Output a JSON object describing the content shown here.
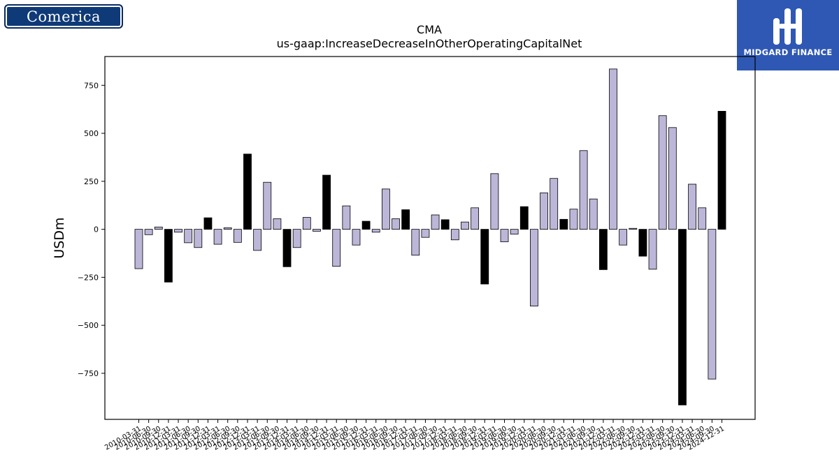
{
  "branding": {
    "left_logo_text": "Comerica",
    "right_logo_text": "MIDGARD FINANCE"
  },
  "colors": {
    "bar_primary": "#bcb6d8",
    "bar_highlight": "#000000",
    "outline": "#000000"
  },
  "chart_data": {
    "type": "bar",
    "title": "CMA",
    "subtitle": "us-gaap:IncreaseDecreaseInOtherOperatingCapitalNet",
    "xlabel": "",
    "ylabel": "USDm",
    "ylim": [
      -990,
      900
    ],
    "yticks": [
      -750,
      -500,
      -250,
      0,
      250,
      500,
      750
    ],
    "ytick_labels": [
      "−750",
      "−500",
      "−250",
      "0",
      "250",
      "500",
      "750"
    ],
    "grid": false,
    "categories": [
      "2010-03-31",
      "2010-06-30",
      "2010-09-30",
      "2010-12-31",
      "2011-03-31",
      "2011-06-30",
      "2011-09-30",
      "2011-12-31",
      "2012-03-31",
      "2012-06-30",
      "2012-09-30",
      "2012-12-31",
      "2013-03-31",
      "2013-06-30",
      "2013-09-30",
      "2013-12-31",
      "2014-03-31",
      "2014-06-30",
      "2014-09-30",
      "2014-12-31",
      "2015-03-31",
      "2015-06-30",
      "2015-09-30",
      "2015-12-31",
      "2016-03-31",
      "2016-06-30",
      "2016-09-30",
      "2016-12-31",
      "2017-03-31",
      "2017-06-30",
      "2017-09-30",
      "2017-12-31",
      "2018-03-31",
      "2018-06-30",
      "2018-09-30",
      "2018-12-31",
      "2019-03-31",
      "2019-06-30",
      "2019-09-30",
      "2019-12-31",
      "2020-03-31",
      "2020-06-30",
      "2020-09-30",
      "2020-12-31",
      "2021-03-31",
      "2021-06-30",
      "2021-09-30",
      "2021-12-31",
      "2022-03-31",
      "2022-06-30",
      "2022-09-30",
      "2022-12-31",
      "2023-03-31",
      "2023-06-30",
      "2023-09-30",
      "2023-12-31",
      "2024-03-31",
      "2024-06-30",
      "2024-09-30",
      "2024-12-31"
    ],
    "values": [
      -205,
      -28,
      12,
      -275,
      -15,
      -70,
      -95,
      60,
      -78,
      8,
      -68,
      392,
      -110,
      245,
      55,
      -195,
      -95,
      62,
      -10,
      282,
      -193,
      122,
      -82,
      42,
      -15,
      210,
      55,
      102,
      -135,
      -42,
      75,
      50,
      -55,
      38,
      112,
      -285,
      290,
      -65,
      -25,
      118,
      -400,
      190,
      265,
      52,
      105,
      410,
      158,
      -210,
      835,
      -82,
      5,
      -140,
      -208,
      592,
      530,
      -915,
      235,
      112,
      -780,
      615
    ],
    "highlight": [
      false,
      false,
      false,
      true,
      false,
      false,
      false,
      true,
      false,
      false,
      false,
      true,
      false,
      false,
      false,
      true,
      false,
      false,
      false,
      true,
      false,
      false,
      false,
      true,
      false,
      false,
      false,
      true,
      false,
      false,
      false,
      true,
      false,
      false,
      false,
      true,
      false,
      false,
      false,
      true,
      false,
      false,
      false,
      true,
      false,
      false,
      false,
      true,
      false,
      false,
      false,
      true,
      false,
      false,
      false,
      true,
      false,
      false,
      false,
      true
    ]
  }
}
